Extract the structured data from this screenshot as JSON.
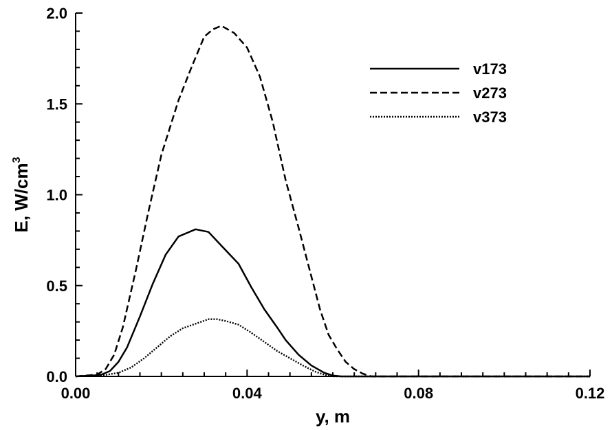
{
  "chart_data": {
    "type": "line",
    "title": "",
    "xlabel": "y,  m",
    "ylabel": "E,  W/cm",
    "ylabel_superscript": "3",
    "xlim": [
      0.0,
      0.12
    ],
    "ylim": [
      0.0,
      2.0
    ],
    "x_ticks": [
      0.0,
      0.04,
      0.08,
      0.12
    ],
    "x_tick_labels": [
      "0.00",
      "0.04",
      "0.08",
      "0.12"
    ],
    "y_ticks": [
      0.0,
      0.5,
      1.0,
      1.5,
      2.0
    ],
    "y_tick_labels": [
      "0.0",
      "0.5",
      "1.0",
      "1.5",
      "2.0"
    ],
    "grid": false,
    "legend": "top-right",
    "series": [
      {
        "name": "v173",
        "style": "solid",
        "color": "#000000",
        "x": [
          0.0,
          0.004,
          0.006,
          0.008,
          0.01,
          0.012,
          0.015,
          0.018,
          0.021,
          0.024,
          0.026,
          0.028,
          0.031,
          0.034,
          0.038,
          0.041,
          0.044,
          0.047,
          0.049,
          0.052,
          0.055,
          0.058,
          0.06,
          0.062,
          0.07,
          0.12
        ],
        "y": [
          0.0,
          0.005,
          0.01,
          0.03,
          0.08,
          0.16,
          0.33,
          0.51,
          0.67,
          0.77,
          0.79,
          0.81,
          0.795,
          0.72,
          0.62,
          0.49,
          0.37,
          0.27,
          0.2,
          0.12,
          0.06,
          0.02,
          0.005,
          0.0,
          0.0,
          0.0
        ]
      },
      {
        "name": "v273",
        "style": "dashed",
        "color": "#000000",
        "x": [
          0.0,
          0.005,
          0.007,
          0.009,
          0.011,
          0.014,
          0.017,
          0.02,
          0.024,
          0.027,
          0.03,
          0.032,
          0.034,
          0.037,
          0.04,
          0.043,
          0.046,
          0.049,
          0.052,
          0.055,
          0.057,
          0.059,
          0.061,
          0.063,
          0.065,
          0.067,
          0.069,
          0.075,
          0.12
        ],
        "y": [
          0.0,
          0.01,
          0.04,
          0.12,
          0.27,
          0.58,
          0.91,
          1.22,
          1.52,
          1.7,
          1.87,
          1.91,
          1.93,
          1.89,
          1.81,
          1.65,
          1.4,
          1.08,
          0.82,
          0.55,
          0.37,
          0.23,
          0.15,
          0.08,
          0.04,
          0.015,
          0.0,
          0.0,
          0.0
        ]
      },
      {
        "name": "v373",
        "style": "dotted",
        "color": "#000000",
        "x": [
          0.0,
          0.006,
          0.01,
          0.013,
          0.016,
          0.019,
          0.022,
          0.025,
          0.028,
          0.031,
          0.033,
          0.035,
          0.038,
          0.041,
          0.044,
          0.047,
          0.05,
          0.053,
          0.056,
          0.058,
          0.06,
          0.07,
          0.12
        ],
        "y": [
          0.0,
          0.005,
          0.02,
          0.05,
          0.1,
          0.16,
          0.22,
          0.265,
          0.29,
          0.315,
          0.315,
          0.305,
          0.285,
          0.24,
          0.19,
          0.14,
          0.1,
          0.06,
          0.025,
          0.01,
          0.0,
          0.0,
          0.0
        ]
      }
    ]
  }
}
